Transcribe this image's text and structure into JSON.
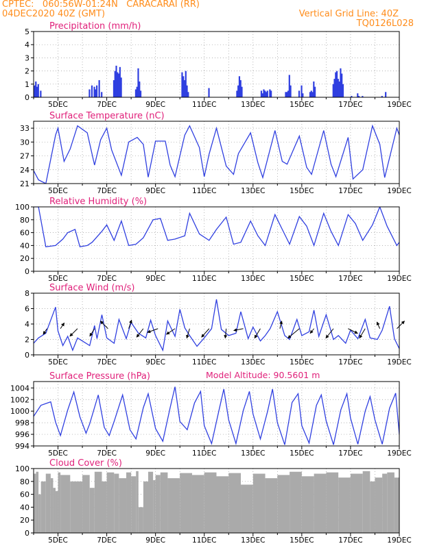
{
  "header": {
    "line1": "CPTEC:   060:56W-01:24N   CARACARAI (RR)",
    "line2": "04DEC2020 40Z (GMT)",
    "right1": "Vertical Grid Line: 40Z",
    "right2": "TQ0126L028",
    "altitude": "Model Altitude: 90.5601 m"
  },
  "colors": {
    "header": "#ff8c1a",
    "title": "#e0207a",
    "series": "#2f3fe0",
    "cloud": "#aaaaaa",
    "arrow": "#000000",
    "grid": "#9a9a9a"
  },
  "x_dates": {
    "start": "04DEC2020 00Z",
    "end": "19DEC2020 00Z",
    "tick_dates": [
      "5DEC",
      "7DEC",
      "9DEC",
      "11DEC",
      "13DEC",
      "15DEC",
      "17DEC",
      "19DEC"
    ],
    "tick_days": [
      1,
      3,
      5,
      7,
      9,
      11,
      13,
      15
    ],
    "end_day": 15
  },
  "chart_data": [
    {
      "id": "precip",
      "type": "bar",
      "title": "Precipitation (mm/h)",
      "ylim": [
        0,
        5
      ],
      "yticks": [
        0,
        1,
        2,
        3,
        4,
        5
      ],
      "x": [
        0.05,
        0.1,
        0.15,
        0.2,
        0.3,
        2.3,
        2.4,
        2.5,
        2.55,
        2.6,
        2.7,
        2.8,
        3.3,
        3.35,
        3.4,
        3.45,
        3.5,
        3.55,
        3.6,
        4.2,
        4.25,
        4.3,
        4.35,
        4.4,
        6.1,
        6.15,
        6.2,
        6.25,
        6.3,
        6.35,
        7.2,
        8.35,
        8.4,
        8.45,
        8.5,
        8.55,
        9.35,
        9.4,
        9.45,
        9.5,
        9.55,
        9.6,
        9.7,
        9.75,
        10.35,
        10.4,
        10.45,
        10.5,
        10.55,
        10.9,
        11.0,
        11.05,
        11.35,
        11.4,
        11.45,
        11.5,
        11.55,
        12.3,
        12.35,
        12.4,
        12.45,
        12.5,
        12.55,
        12.6,
        12.65,
        12.7,
        13.05,
        13.3,
        13.35,
        13.5,
        14.3,
        14.45
      ],
      "values": [
        0.9,
        1.2,
        0.8,
        1.0,
        0.5,
        0.6,
        0.9,
        0.8,
        0.6,
        0.9,
        1.3,
        0.4,
        1.3,
        2.0,
        2.4,
        1.9,
        1.8,
        2.3,
        1.5,
        0.6,
        0.8,
        2.2,
        1.2,
        0.5,
        1.9,
        1.6,
        1.3,
        2.0,
        0.9,
        0.4,
        0.7,
        0.5,
        0.9,
        1.6,
        1.3,
        0.8,
        0.5,
        0.3,
        0.6,
        0.5,
        0.4,
        0.5,
        0.6,
        0.5,
        0.4,
        0.4,
        0.5,
        1.7,
        0.9,
        0.5,
        0.9,
        0.3,
        0.4,
        0.5,
        0.4,
        1.2,
        0.8,
        1.0,
        1.4,
        1.9,
        2.0,
        1.4,
        1.2,
        2.2,
        1.8,
        1.0,
        0.1,
        0.3,
        0.1,
        0.1,
        0.1,
        0.4
      ]
    },
    {
      "id": "temp",
      "type": "line",
      "title": "Surface Temperature (nC)",
      "ylim": [
        21,
        34.5
      ],
      "yticks": [
        21,
        24,
        27,
        30,
        33
      ],
      "x": [
        0,
        0.2,
        0.5,
        0.9,
        1.0,
        1.25,
        1.5,
        1.8,
        2.2,
        2.5,
        2.75,
        3.0,
        3.2,
        3.6,
        3.9,
        4.25,
        4.5,
        4.7,
        5.0,
        5.4,
        5.6,
        5.8,
        6.2,
        6.4,
        6.8,
        7.0,
        7.2,
        7.5,
        7.9,
        8.2,
        8.4,
        8.9,
        9.2,
        9.4,
        9.9,
        10.2,
        10.4,
        10.9,
        11.2,
        11.4,
        11.9,
        12.2,
        12.4,
        12.9,
        13.1,
        13.5,
        13.9,
        14.2,
        14.4,
        14.9,
        15.0
      ],
      "y": [
        23.8,
        21.8,
        21.0,
        31.5,
        33.0,
        25.8,
        28.5,
        33.5,
        32.0,
        25.0,
        30.5,
        33.0,
        28.3,
        22.8,
        30.0,
        31.0,
        29.5,
        22.4,
        30.2,
        30.2,
        25.0,
        22.5,
        31.5,
        33.5,
        28.8,
        22.5,
        27.4,
        33.0,
        24.8,
        23.0,
        27.5,
        32.0,
        25.5,
        22.3,
        32.5,
        25.8,
        25.2,
        31.3,
        24.5,
        23.0,
        32.5,
        25.2,
        22.5,
        31.0,
        22.0,
        24.0,
        33.5,
        29.5,
        22.3,
        33.0,
        31.5
      ]
    },
    {
      "id": "rh",
      "type": "line",
      "title": "Relative Humidity (%)",
      "ylim": [
        0,
        100
      ],
      "yticks": [
        0,
        20,
        40,
        60,
        80,
        100
      ],
      "x": [
        0,
        0.2,
        0.5,
        0.9,
        1.2,
        1.4,
        1.7,
        1.9,
        2.2,
        2.4,
        2.8,
        3.0,
        3.3,
        3.6,
        3.9,
        4.2,
        4.5,
        4.9,
        5.2,
        5.5,
        5.8,
        6.2,
        6.4,
        6.8,
        7.2,
        7.5,
        7.9,
        8.2,
        8.5,
        8.9,
        9.2,
        9.5,
        9.9,
        10.2,
        10.5,
        10.9,
        11.2,
        11.5,
        11.9,
        12.2,
        12.5,
        12.9,
        13.2,
        13.5,
        13.9,
        14.2,
        14.5,
        14.9,
        15.0
      ],
      "y": [
        100,
        100,
        38,
        40,
        50,
        60,
        65,
        38,
        40,
        45,
        62,
        72,
        48,
        78,
        40,
        42,
        52,
        80,
        82,
        48,
        50,
        55,
        90,
        58,
        48,
        65,
        84,
        42,
        45,
        78,
        55,
        40,
        88,
        65,
        42,
        85,
        70,
        40,
        90,
        62,
        40,
        88,
        74,
        48,
        72,
        100,
        70,
        40,
        45
      ]
    },
    {
      "id": "wind",
      "type": "line",
      "title": "Surface Wind (m/s)",
      "ylim": [
        0,
        8
      ],
      "yticks": [
        0,
        2,
        4,
        6,
        8
      ],
      "x": [
        0,
        0.2,
        0.5,
        0.9,
        1.0,
        1.2,
        1.4,
        1.6,
        1.8,
        2.0,
        2.3,
        2.5,
        2.6,
        2.8,
        3.0,
        3.3,
        3.5,
        3.8,
        4.0,
        4.3,
        4.6,
        4.8,
        5.0,
        5.3,
        5.5,
        5.8,
        6.0,
        6.2,
        6.4,
        6.7,
        7.0,
        7.3,
        7.5,
        7.7,
        8.0,
        8.3,
        8.5,
        8.8,
        9.0,
        9.3,
        9.5,
        9.7,
        10.0,
        10.3,
        10.5,
        10.8,
        11.0,
        11.3,
        11.5,
        11.7,
        12.0,
        12.3,
        12.5,
        12.8,
        13.0,
        13.3,
        13.6,
        13.8,
        14.1,
        14.3,
        14.6,
        14.8,
        15.0
      ],
      "y": [
        1.5,
        2.2,
        2.8,
        6.2,
        3.1,
        1.2,
        2.4,
        0.6,
        2.2,
        1.8,
        1.2,
        3.8,
        2.1,
        5.2,
        2.2,
        1.5,
        4.6,
        2.1,
        4.2,
        2.8,
        2.2,
        4.5,
        2.5,
        0.6,
        4.4,
        2.4,
        5.9,
        3.5,
        2.5,
        1.1,
        2.2,
        3.4,
        7.2,
        3.3,
        2.5,
        2.8,
        5.6,
        2.1,
        3.6,
        1.8,
        2.5,
        3.4,
        5.6,
        2.5,
        2.0,
        4.6,
        2.5,
        3.0,
        5.8,
        2.4,
        5.2,
        2.0,
        2.5,
        1.5,
        3.2,
        2.1,
        4.6,
        2.2,
        2.0,
        3.2,
        6.3,
        2.1,
        0.8
      ],
      "arrows": {
        "x": [
          0.55,
          1.1,
          1.8,
          2.5,
          3.05,
          3.9,
          4.5,
          5.1,
          5.8,
          6.4,
          7.2,
          7.9,
          8.6,
          9.3,
          10.1,
          10.9,
          11.5,
          12.3,
          12.9,
          13.6,
          14.2,
          14.9
        ],
        "u": [
          -0.4,
          0.4,
          -0.8,
          -0.5,
          -0.8,
          0.3,
          -0.7,
          -1.1,
          -0.9,
          -0.3,
          -0.8,
          -0.1,
          -1.0,
          -0.6,
          0.2,
          -1.2,
          -0.4,
          -0.8,
          1.0,
          -0.6,
          -0.3,
          0.8
        ],
        "v": [
          0.6,
          -0.6,
          0.8,
          0.8,
          -0.8,
          -0.9,
          0.9,
          0.4,
          0.6,
          1.0,
          0.9,
          1.0,
          0.2,
          1.0,
          -0.8,
          1.0,
          0.5,
          1.0,
          0.5,
          1.0,
          -0.7,
          -0.8
        ]
      }
    },
    {
      "id": "pres",
      "type": "line",
      "title": "Surface Pressure (hPa)",
      "ylim": [
        994,
        1005.1
      ],
      "yticks": [
        994,
        996,
        998,
        1000,
        1002,
        1004
      ],
      "x": [
        0,
        0.3,
        0.7,
        0.9,
        1.1,
        1.4,
        1.65,
        1.9,
        2.15,
        2.3,
        2.65,
        2.9,
        3.1,
        3.3,
        3.65,
        3.95,
        4.2,
        4.5,
        4.7,
        5.0,
        5.3,
        5.6,
        5.8,
        6.0,
        6.3,
        6.6,
        6.85,
        7.0,
        7.3,
        7.6,
        7.8,
        8.0,
        8.3,
        8.6,
        8.85,
        9.0,
        9.3,
        9.6,
        9.8,
        10.0,
        10.3,
        10.6,
        10.85,
        11.0,
        11.3,
        11.6,
        11.8,
        12.0,
        12.3,
        12.6,
        12.85,
        13.0,
        13.3,
        13.6,
        13.8,
        14.0,
        14.3,
        14.6,
        14.85,
        15.0
      ],
      "y": [
        999.1,
        1001.0,
        1001.6,
        998.1,
        995.8,
        1000.2,
        1003.3,
        999.0,
        996.2,
        997.8,
        1002.8,
        997.2,
        995.8,
        998.2,
        1002.8,
        996.8,
        995.2,
        1000.6,
        1003.0,
        997.0,
        994.8,
        1000.6,
        1004.2,
        998.2,
        996.8,
        1001.4,
        1003.4,
        997.5,
        994.4,
        1000.1,
        1003.8,
        998.5,
        994.4,
        1000.1,
        1003.4,
        999.5,
        995.2,
        1000.0,
        1003.8,
        998.0,
        994.2,
        1001.5,
        1003.0,
        997.5,
        994.5,
        1001.0,
        1002.8,
        998.3,
        994.2,
        1000.2,
        1003.0,
        998.8,
        994.3,
        1000.0,
        1002.5,
        998.5,
        994.3,
        1000.5,
        1003.1,
        996.0
      ]
    },
    {
      "id": "cloud",
      "type": "area",
      "title": "Cloud Cover (%)",
      "ylim": [
        0,
        100
      ],
      "yticks": [
        0,
        20,
        40,
        60,
        80,
        100
      ],
      "x": [
        0,
        0.1,
        0.2,
        0.3,
        0.5,
        0.7,
        0.8,
        0.9,
        1.0,
        1.1,
        1.5,
        2.0,
        2.3,
        2.5,
        2.8,
        3.0,
        3.3,
        3.5,
        3.8,
        4.0,
        4.2,
        4.3,
        4.5,
        4.7,
        4.9,
        5.0,
        5.2,
        5.5,
        6.0,
        6.5,
        7.0,
        7.5,
        8.0,
        8.5,
        9.0,
        9.5,
        10.0,
        10.5,
        11.0,
        11.5,
        12.0,
        12.5,
        13.0,
        13.5,
        13.8,
        14.0,
        14.3,
        14.5,
        14.8,
        15.0
      ],
      "y": [
        92,
        95,
        60,
        80,
        92,
        85,
        70,
        65,
        94,
        90,
        80,
        90,
        70,
        95,
        80,
        94,
        92,
        85,
        94,
        88,
        96,
        40,
        80,
        95,
        82,
        90,
        94,
        85,
        93,
        90,
        94,
        88,
        93,
        75,
        92,
        85,
        90,
        95,
        88,
        92,
        94,
        86,
        92,
        96,
        80,
        86,
        92,
        94,
        86,
        94
      ]
    }
  ]
}
